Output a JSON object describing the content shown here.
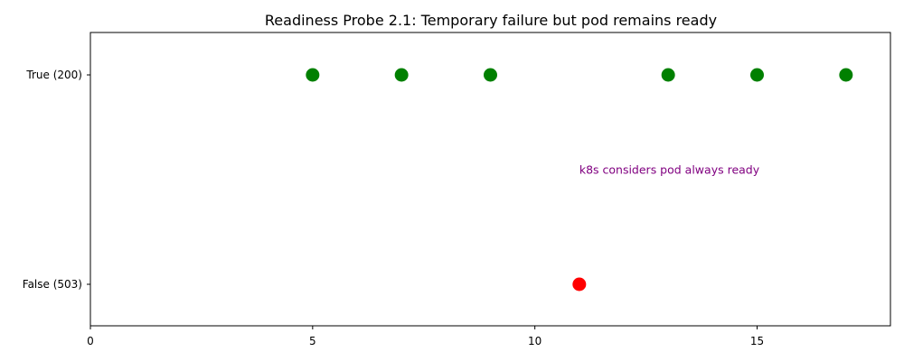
{
  "chart_data": {
    "type": "scatter",
    "title": "Readiness Probe 2.1: Temporary failure but pod remains ready",
    "xlabel": "",
    "ylabel": "",
    "xlim": [
      0,
      18
    ],
    "x_ticks": [
      0,
      5,
      10,
      15
    ],
    "y_categories": [
      "False (503)",
      "True (200)"
    ],
    "points": [
      {
        "x": 5,
        "y": "True (200)",
        "color": "#008000"
      },
      {
        "x": 7,
        "y": "True (200)",
        "color": "#008000"
      },
      {
        "x": 9,
        "y": "True (200)",
        "color": "#008000"
      },
      {
        "x": 11,
        "y": "False (503)",
        "color": "#ff0000"
      },
      {
        "x": 13,
        "y": "True (200)",
        "color": "#008000"
      },
      {
        "x": 15,
        "y": "True (200)",
        "color": "#008000"
      },
      {
        "x": 17,
        "y": "True (200)",
        "color": "#008000"
      }
    ],
    "annotation": {
      "text": "k8s considers pod always ready",
      "x": 11,
      "y_value": 0.52,
      "color": "#800080"
    },
    "grid": false,
    "legend": "none"
  }
}
